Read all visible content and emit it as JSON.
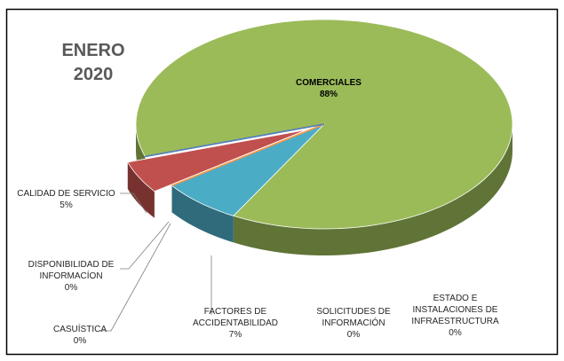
{
  "chart_data": {
    "type": "pie",
    "title_lines": [
      "ENERO",
      "2020"
    ],
    "categories": [
      "COMERCIALES",
      "FACTORES DE ACCIDENTABILIDAD",
      "CASUÍSTICA",
      "DISPONIBILIDAD DE INFORMACÍON",
      "CALIDAD DE SERVICIO",
      "SOLICITUDES DE INFORMACIÓN",
      "ESTADO E INSTALACIONES DE INFRAESTRUCTURA"
    ],
    "values": [
      88,
      7,
      0,
      0,
      5,
      0,
      0
    ],
    "value_labels": [
      "88%",
      "7%",
      "0%",
      "0%",
      "5%",
      "0%",
      "0%"
    ],
    "colors": [
      "#9bbb59",
      "#4bacc6",
      "#f79646",
      "#f79646",
      "#c0504d",
      "#8064a2",
      "#4f81bd"
    ],
    "exploded": [
      4
    ]
  }
}
